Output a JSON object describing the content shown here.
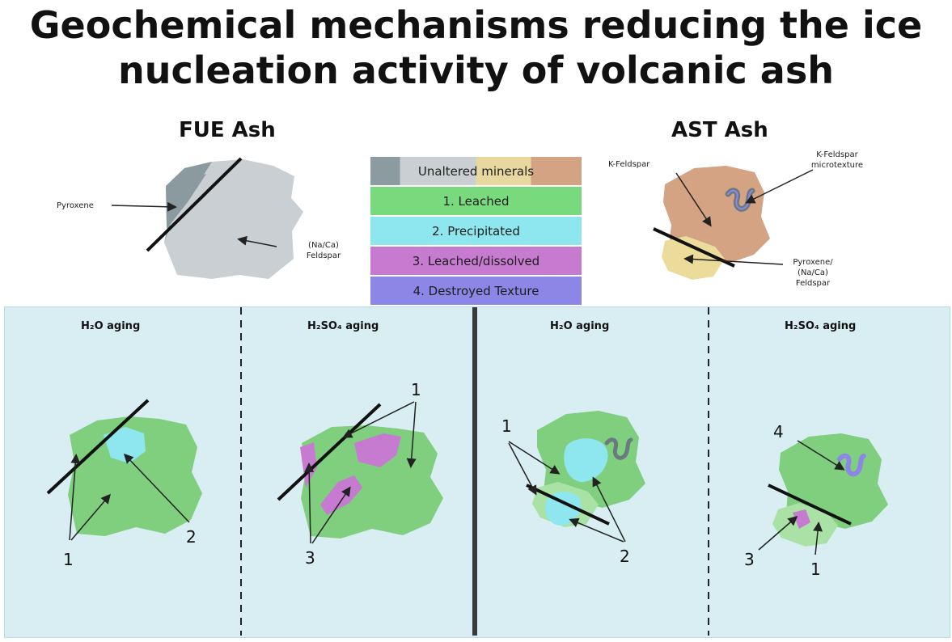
{
  "title": {
    "line1": "Geochemical mechanisms reducing the ice",
    "line2": "nucleation activity of volcanic ash"
  },
  "ash": {
    "fue": {
      "label": "FUE Ash",
      "pyroxene": "Pyroxene",
      "feldspar_line1": "(Na/Ca)",
      "feldspar_line2": "Feldspar"
    },
    "ast": {
      "label": "AST Ash",
      "kfeldspar": "K-Feldspar",
      "kfeldspar_micro_line1": "K-Feldspar",
      "kfeldspar_micro_line2": "microtexture",
      "pyroxene_line1": "Pyroxene/",
      "pyroxene_line2": "(Na/Ca)",
      "pyroxene_line3": "Feldspar"
    }
  },
  "legend": [
    {
      "label": "Unaltered minerals",
      "color": "#c9cfd2"
    },
    {
      "label": "1. Leached",
      "color": "#79d97d"
    },
    {
      "label": "2. Precipitated",
      "color": "#8ee7ee"
    },
    {
      "label": "3. Leached/dissolved",
      "color": "#c77bd0"
    },
    {
      "label": "4. Destroyed Texture",
      "color": "#8c87e6"
    }
  ],
  "panels": {
    "p1": {
      "title": "H₂O aging",
      "labels": [
        "1",
        "2"
      ]
    },
    "p2": {
      "title": "H₂SO₄ aging",
      "labels": [
        "1",
        "3"
      ]
    },
    "p3": {
      "title": "H₂O aging",
      "labels": [
        "1",
        "2"
      ]
    },
    "p4": {
      "title": "H₂SO₄ aging",
      "labels": [
        "4",
        "3",
        "1"
      ]
    }
  },
  "colors": {
    "panel_bg": "#d8eef2",
    "grain_grey": "#c9cfd2",
    "pyroxene_dark": "#8a9a9e",
    "kfeldspar": "#d4a384",
    "pyroxene_yellow": "#ecdc9b",
    "leached_green": "#7fcf7f",
    "light_green": "#a9e2a4",
    "precipitated": "#8ee7ee",
    "dissolved": "#c77bd0",
    "texture": "#8c87e6"
  }
}
